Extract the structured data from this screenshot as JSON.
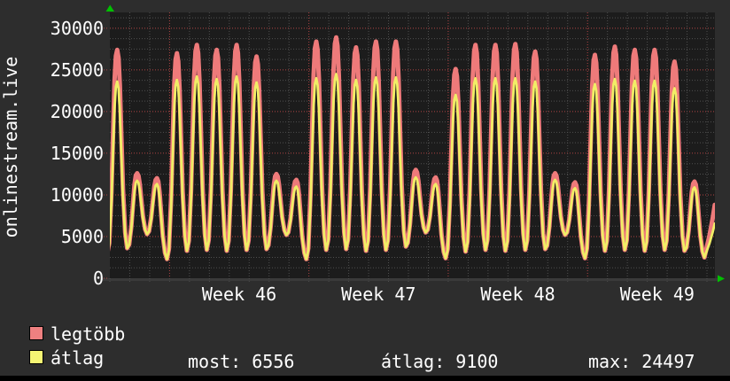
{
  "title": "onlinestream.live",
  "legend": [
    {
      "label": "legtöbb",
      "color": "#ee8080"
    },
    {
      "label": "átlag",
      "color": "#f5f573"
    }
  ],
  "stats": [
    {
      "text": "most: 6556"
    },
    {
      "text": "átlag: 9100"
    },
    {
      "text": "max: 24497"
    }
  ],
  "colors": {
    "outer_background": "#2d2d2d",
    "plot_background": "#1c1c1c",
    "minor_grid": "#4f4f4f",
    "major_grid_red": "#b04444",
    "axis": "#3a3a3a",
    "text": "#ffffff",
    "arrow_green": "#00c000",
    "series_max": "#ee7a7a",
    "series_avg": "#f1ee66"
  },
  "chart_data": {
    "type": "line",
    "title": "onlinestream.live",
    "xlabel": "",
    "ylabel": "",
    "ylim": [
      0,
      31900
    ],
    "yticks": [
      0,
      5000,
      10000,
      15000,
      20000,
      25000,
      30000
    ],
    "xtick_labels": [
      "Week 46",
      "Week 47",
      "Week 48",
      "Week 49"
    ],
    "grid": {
      "minor_step": 1250,
      "major_step": 5000,
      "days_per_week": 7,
      "lead_in_days": 3,
      "visible_days": 30.4
    },
    "legend_position": "bottom",
    "series": [
      {
        "name": "legtöbb",
        "color": "#ee7a7a",
        "daily_peaks": [
          27400,
          12600,
          12000,
          27000,
          28000,
          27400,
          28000,
          26600,
          12500,
          11800,
          28400,
          28900,
          27700,
          28400,
          28400,
          13000,
          12100,
          25100,
          28000,
          28000,
          28100,
          27200,
          12600,
          11500,
          26800,
          27800,
          27400,
          27400,
          26000,
          11600
        ],
        "final_value": 8800
      },
      {
        "name": "átlag",
        "color": "#f1ee66",
        "daily_peaks": [
          23600,
          11700,
          11300,
          23800,
          24200,
          23900,
          24200,
          23500,
          11700,
          11000,
          24000,
          24497,
          23800,
          24100,
          24100,
          12100,
          11300,
          22000,
          24000,
          24000,
          24000,
          23600,
          11800,
          10800,
          23300,
          23900,
          23700,
          23700,
          22800,
          10900
        ],
        "final_value": 6556
      }
    ],
    "valleys": [
      3000,
      3600,
      5300,
      2300,
      3300,
      3400,
      3300,
      3400,
      3500,
      5200,
      2300,
      3400,
      3500,
      3300,
      3400,
      3800,
      5500,
      2400,
      3200,
      3400,
      3300,
      3400,
      3500,
      5200,
      2400,
      3300,
      3400,
      3300,
      3400,
      3300,
      2500
    ],
    "summary": {
      "most": 6556,
      "atlag": 9100,
      "max": 24497
    }
  }
}
